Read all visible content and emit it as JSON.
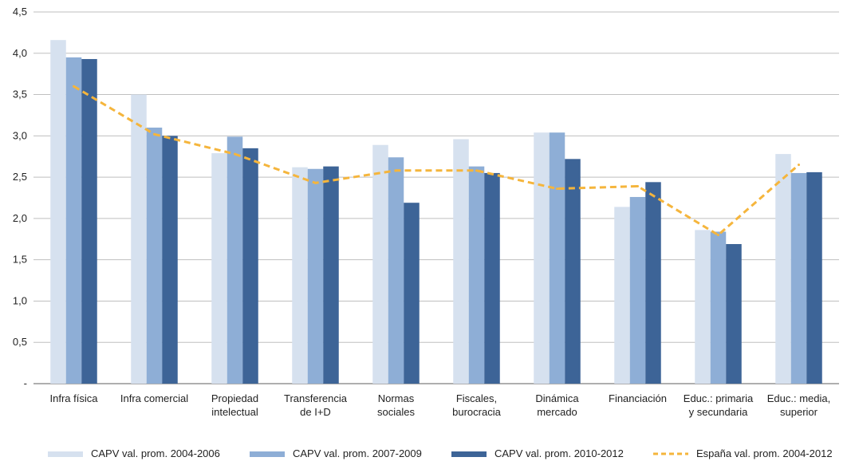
{
  "chart_data": {
    "type": "bar",
    "title": "",
    "xlabel": "",
    "ylabel": "",
    "ylim": [
      0,
      4.5
    ],
    "yticks": [
      {
        "value": 0,
        "label": "-"
      },
      {
        "value": 0.5,
        "label": "0,5"
      },
      {
        "value": 1.0,
        "label": "1,0"
      },
      {
        "value": 1.5,
        "label": "1,5"
      },
      {
        "value": 2.0,
        "label": "2,0"
      },
      {
        "value": 2.5,
        "label": "2,5"
      },
      {
        "value": 3.0,
        "label": "3,0"
      },
      {
        "value": 3.5,
        "label": "3,5"
      },
      {
        "value": 4.0,
        "label": "4,0"
      },
      {
        "value": 4.5,
        "label": "4,5"
      }
    ],
    "grid": true,
    "legend_position": "bottom",
    "categories": [
      [
        "Infra física"
      ],
      [
        "Infra comercial"
      ],
      [
        "Propiedad",
        "intelectual"
      ],
      [
        "Transferencia",
        "de I+D"
      ],
      [
        "Normas",
        "sociales"
      ],
      [
        "Fiscales,",
        "burocracia"
      ],
      [
        "Dinámica",
        "mercado"
      ],
      [
        "Financiación"
      ],
      [
        "Educ.: primaria",
        "y secundaria"
      ],
      [
        "Educ.: media,",
        "superior"
      ]
    ],
    "series": [
      {
        "name": "CAPV val. prom. 2004-2006",
        "kind": "bar",
        "color": "#d6e1ef",
        "values": [
          4.16,
          3.5,
          2.79,
          2.62,
          2.89,
          2.96,
          3.04,
          2.14,
          1.86,
          2.78
        ]
      },
      {
        "name": "CAPV val. prom. 2007-2009",
        "kind": "bar",
        "color": "#8eaed6",
        "values": [
          3.95,
          3.1,
          2.99,
          2.6,
          2.74,
          2.63,
          3.04,
          2.26,
          1.84,
          2.55
        ]
      },
      {
        "name": "CAPV val. prom. 2010-2012",
        "kind": "bar",
        "color": "#3d6497",
        "values": [
          3.93,
          3.0,
          2.85,
          2.63,
          2.19,
          2.55,
          2.72,
          2.44,
          1.69,
          2.56
        ]
      },
      {
        "name": "España val. prom.  2004-2012",
        "kind": "line",
        "color": "#f5b53c",
        "values": [
          3.6,
          3.02,
          2.78,
          2.43,
          2.58,
          2.58,
          2.36,
          2.39,
          1.8,
          2.65
        ]
      }
    ]
  }
}
